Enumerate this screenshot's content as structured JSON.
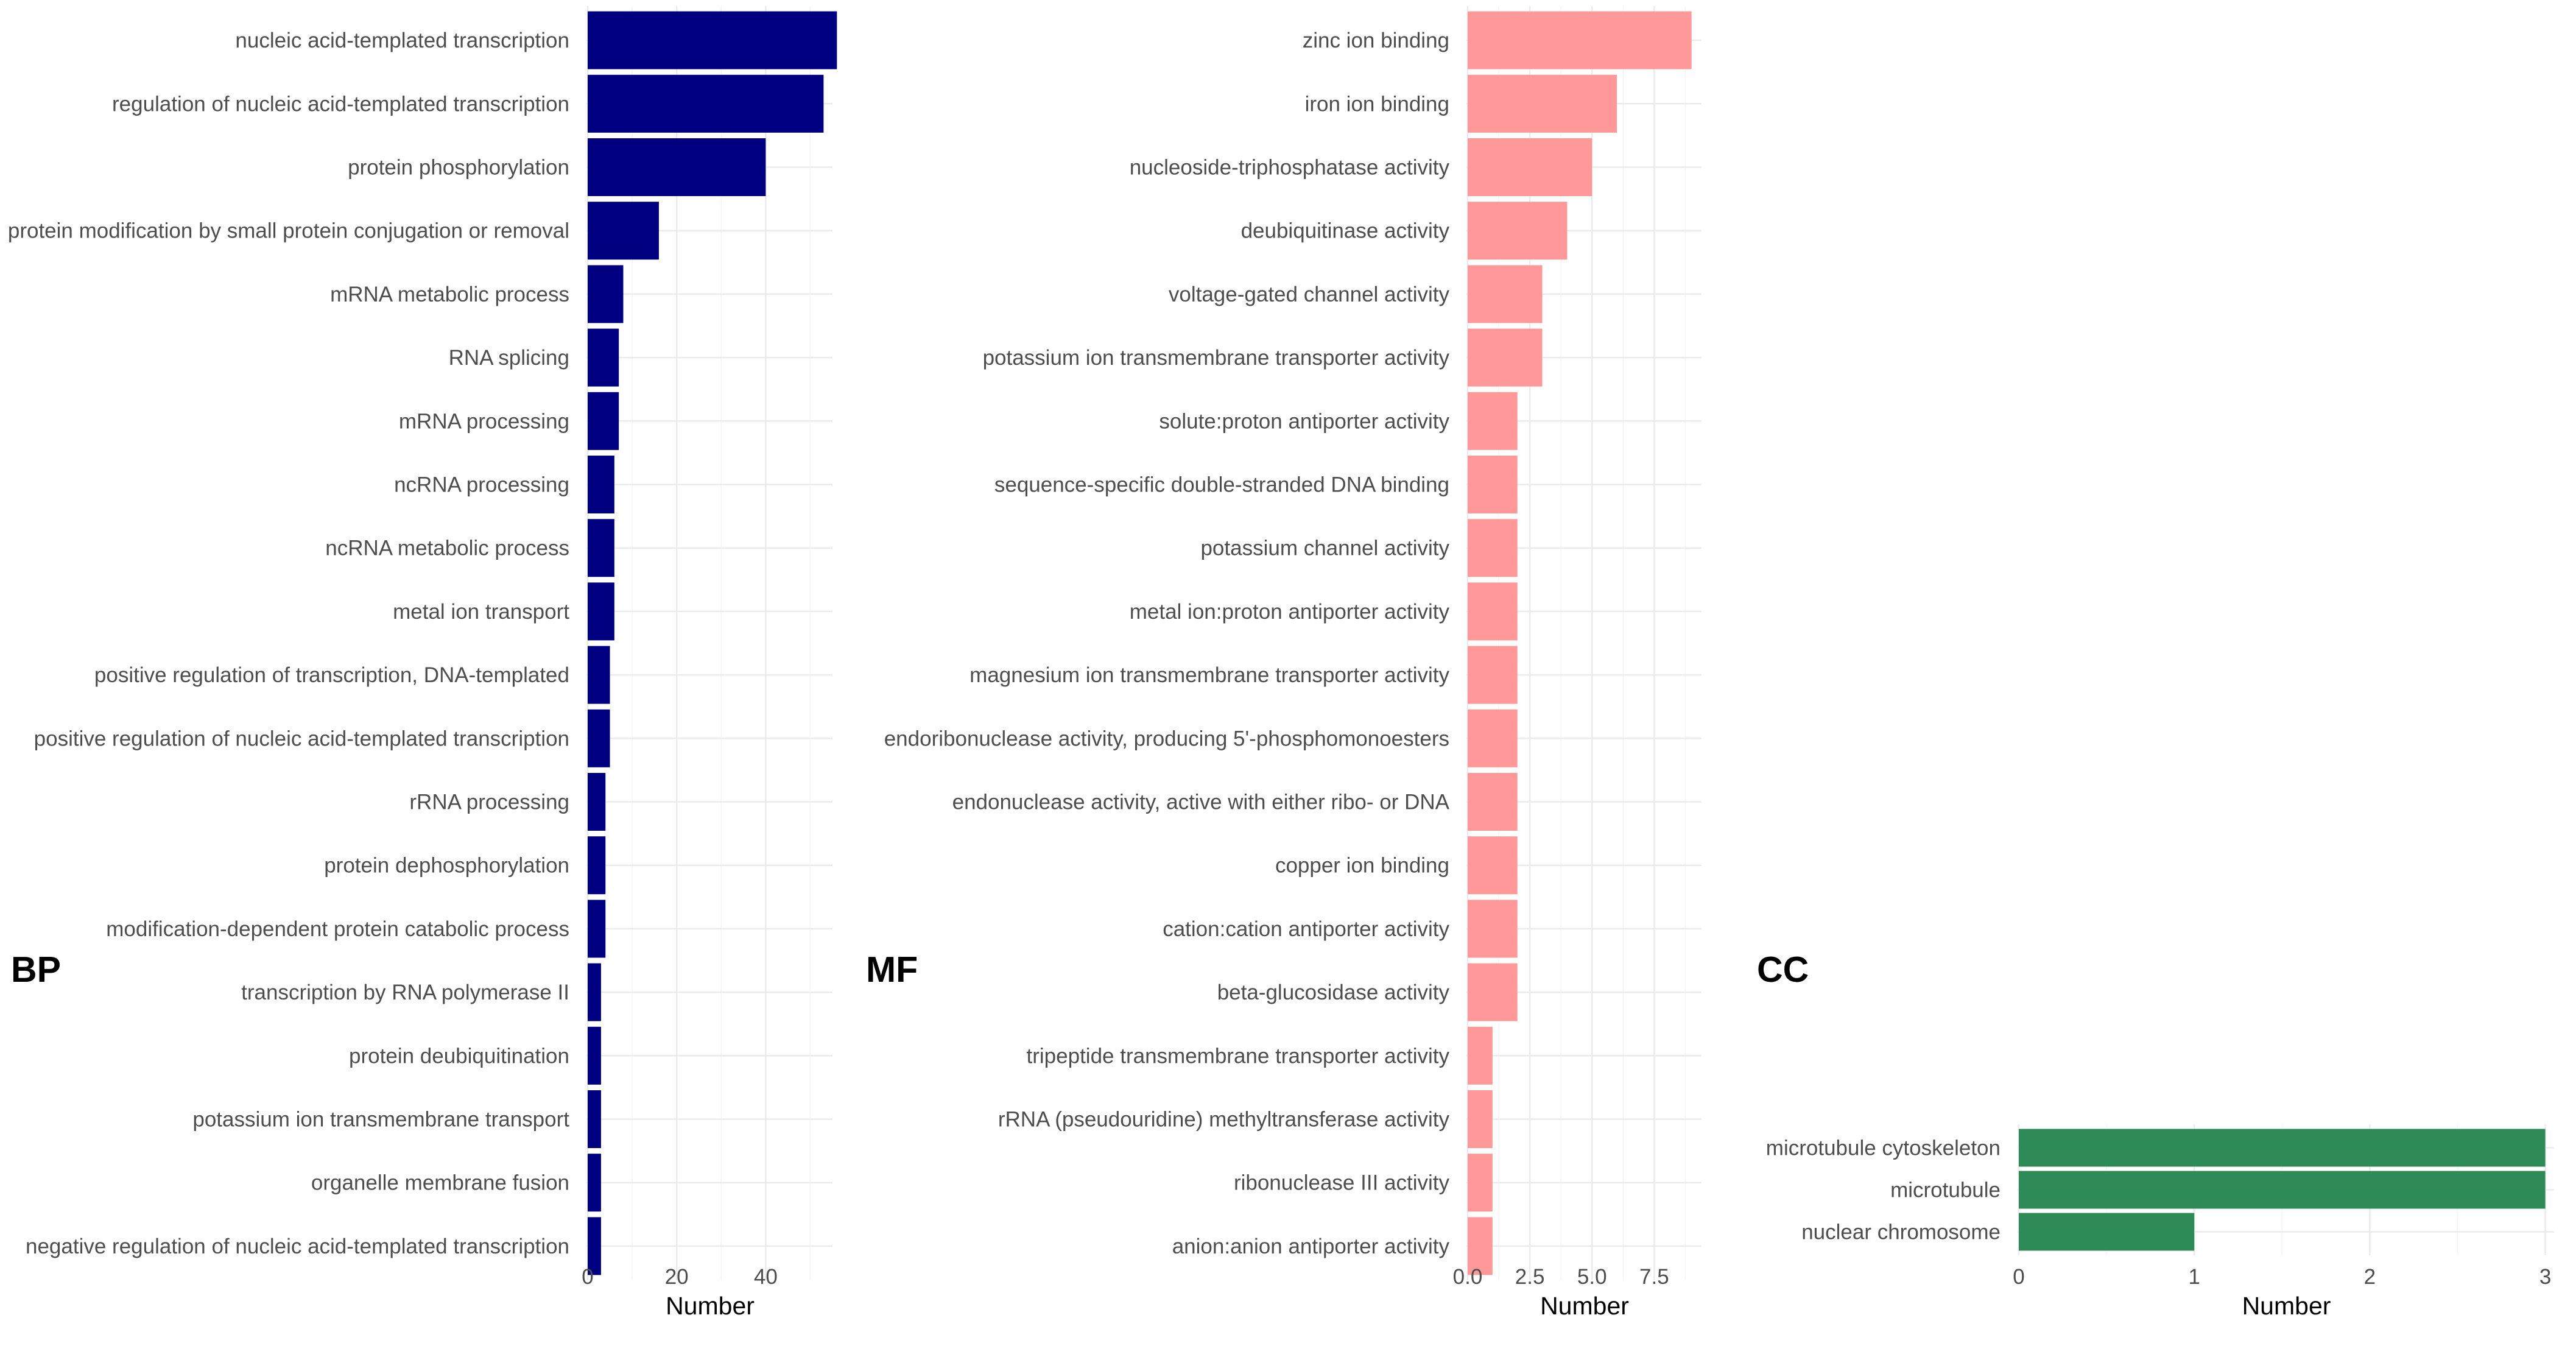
{
  "chart_data": [
    {
      "type": "bar",
      "orientation": "horizontal",
      "panel_label": "BP",
      "color": "#000080",
      "xlabel": "Number",
      "ylabel": "",
      "xticks": [
        0,
        20,
        40
      ],
      "xlim": [
        0,
        55
      ],
      "grid": true,
      "categories": [
        "nucleic acid-templated transcription",
        "regulation of nucleic acid-templated transcription",
        "protein phosphorylation",
        "protein modification by small protein conjugation or removal",
        "mRNA metabolic process",
        "RNA splicing",
        "mRNA processing",
        "ncRNA processing",
        "ncRNA metabolic process",
        "metal ion transport",
        "positive regulation of transcription, DNA-templated",
        "positive regulation of nucleic acid-templated transcription",
        "rRNA processing",
        "protein dephosphorylation",
        "modification-dependent protein catabolic process",
        "transcription by RNA polymerase II",
        "protein deubiquitination",
        "potassium ion transmembrane transport",
        "organelle membrane fusion",
        "negative regulation of nucleic acid-templated transcription"
      ],
      "values": [
        56,
        53,
        40,
        16,
        8,
        7,
        7,
        6,
        6,
        6,
        5,
        5,
        4,
        4,
        4,
        3,
        3,
        3,
        3,
        3
      ]
    },
    {
      "type": "bar",
      "orientation": "horizontal",
      "panel_label": "MF",
      "color": "#FF9999",
      "xlabel": "Number",
      "ylabel": "",
      "xticks": [
        0,
        2.5,
        5,
        7.5
      ],
      "xtick_labels": [
        "0.0",
        "2.5",
        "5.0",
        "7.5"
      ],
      "xlim": [
        0,
        9.4
      ],
      "grid": true,
      "categories": [
        "zinc ion binding",
        "iron ion binding",
        "nucleoside-triphosphatase activity",
        "deubiquitinase activity",
        "voltage-gated channel activity",
        "potassium ion transmembrane transporter activity",
        "solute:proton antiporter activity",
        "sequence-specific double-stranded DNA binding",
        "potassium channel activity",
        "metal ion:proton antiporter activity",
        "magnesium ion transmembrane transporter activity",
        "endoribonuclease activity, producing 5'-phosphomonoesters",
        "endonuclease activity, active with either ribo- or DNA",
        "copper ion binding",
        "cation:cation antiporter activity",
        "beta-glucosidase activity",
        "tripeptide transmembrane transporter activity",
        "rRNA (pseudouridine) methyltransferase activity",
        "ribonuclease III activity",
        "anion:anion antiporter activity"
      ],
      "values": [
        9,
        6,
        5,
        4,
        3,
        3,
        2,
        2,
        2,
        2,
        2,
        2,
        2,
        2,
        2,
        2,
        1,
        1,
        1,
        1
      ]
    },
    {
      "type": "bar",
      "orientation": "horizontal",
      "panel_label": "CC",
      "color": "#2E8B57",
      "xlabel": "Number",
      "ylabel": "",
      "xticks": [
        0,
        1,
        2,
        3
      ],
      "xlim": [
        0,
        3.05
      ],
      "grid": true,
      "categories": [
        "microtubule cytoskeleton",
        "microtubule",
        "nuclear chromosome"
      ],
      "values": [
        3,
        3,
        1
      ]
    }
  ]
}
